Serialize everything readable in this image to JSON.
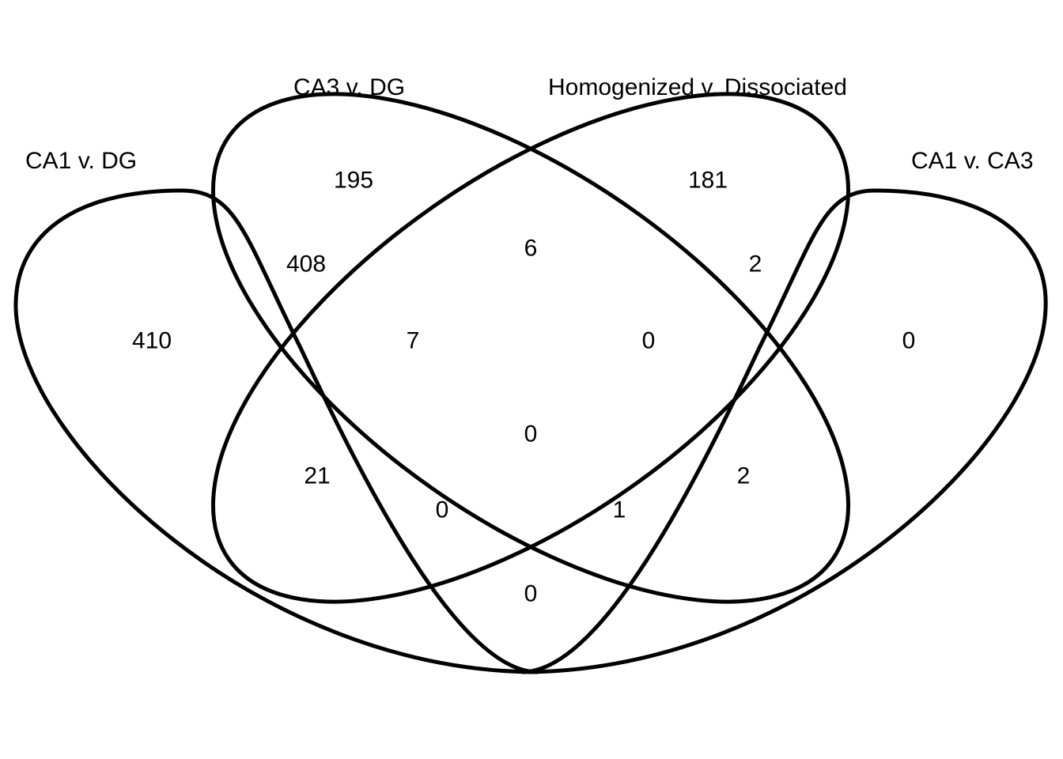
{
  "sets": [
    {
      "key": "ca1_dg",
      "label": "CA1 v. DG"
    },
    {
      "key": "ca3_dg",
      "label": "CA3 v. DG"
    },
    {
      "key": "homog_dissoc",
      "label": "Homogenized v. Dissociated"
    },
    {
      "key": "ca1_ca3",
      "label": "CA1 v. CA3"
    }
  ],
  "regions": {
    "ca1_dg_only": "410",
    "ca3_dg_only": "195",
    "homog_dissoc_only": "181",
    "ca1_ca3_only": "0",
    "ca1_dg__ca3_dg": "408",
    "ca3_dg__homog_dissoc": "6",
    "homog_dissoc__ca1_ca3": "2",
    "ca1_dg__ca3_dg__homog_dissoc": "7",
    "ca3_dg__homog_dissoc__ca1_ca3": "0",
    "ca1_dg__homog_dissoc": "21",
    "ca3_dg__ca1_ca3": "2",
    "all_four": "0",
    "ca1_dg__homog_dissoc__ca1_ca3": "0",
    "ca1_dg__ca3_dg__ca1_ca3": "1",
    "ca1_dg__ca1_ca3": "0"
  }
}
